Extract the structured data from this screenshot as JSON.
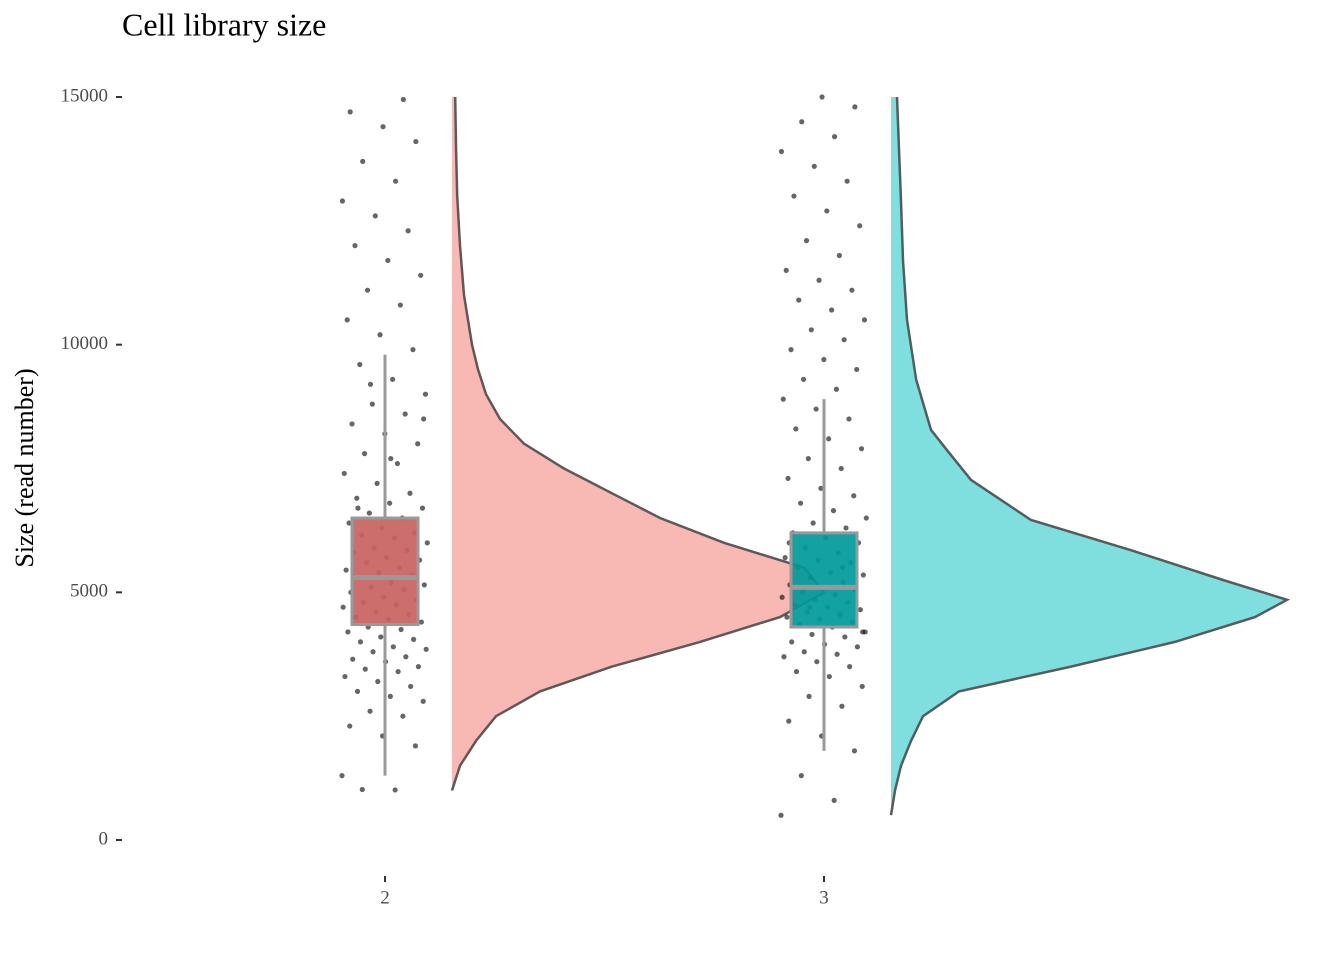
{
  "chart_data": {
    "type": "raincloud",
    "title": "Cell library size",
    "y_label": "Size (read number)",
    "categories": [
      "2",
      "3"
    ],
    "ylim": [
      0,
      15000
    ],
    "yticks": [
      0,
      5000,
      10000,
      15000
    ],
    "groups": [
      {
        "box_color": "#c8625e",
        "density_color": "#f8b8b4",
        "box": {
          "whisker_low": 1300,
          "q1": 4350,
          "median": 5300,
          "q3": 6500,
          "whisker_high": 9800
        },
        "density_y": [
          1000,
          1500,
          2000,
          2500,
          3000,
          3500,
          4000,
          4500,
          5000,
          5500,
          6000,
          6500,
          7000,
          7500,
          8000,
          8500,
          9000,
          9500,
          10000,
          11000,
          12000,
          13000,
          14000,
          15000
        ],
        "density": [
          0,
          0.02,
          0.06,
          0.11,
          0.22,
          0.4,
          0.62,
          0.82,
          0.93,
          0.88,
          0.68,
          0.52,
          0.4,
          0.28,
          0.18,
          0.12,
          0.085,
          0.065,
          0.05,
          0.03,
          0.02,
          0.013,
          0.01,
          0.008
        ],
        "points": [
          1300,
          1010,
          1020,
          1900,
          2100,
          2300,
          2500,
          2600,
          2800,
          2900,
          3000,
          3100,
          3200,
          3300,
          3400,
          3450,
          3500,
          3600,
          3650,
          3700,
          3800,
          3850,
          3900,
          4000,
          4050,
          4100,
          4200,
          4250,
          4300,
          4400,
          4450,
          4500,
          4550,
          4600,
          4700,
          4750,
          4800,
          4850,
          4900,
          5000,
          5050,
          5100,
          5150,
          5200,
          5300,
          5350,
          5400,
          5450,
          5500,
          5600,
          5650,
          5700,
          5800,
          5850,
          5900,
          6000,
          6100,
          6150,
          6200,
          6300,
          6400,
          6500,
          6600,
          6700,
          6800,
          6900,
          7000,
          7200,
          7400,
          7600,
          7800,
          8000,
          8200,
          8400,
          8600,
          8800,
          9000,
          9300,
          9600,
          9900,
          10200,
          10500,
          10800,
          11100,
          11400,
          11700,
          12000,
          12300,
          12600,
          12900,
          13300,
          13700,
          14100,
          14400,
          14700,
          14950,
          9200,
          8500,
          7700,
          6700
        ]
      },
      {
        "box_color": "#00999a",
        "density_color": "#7fdfdf",
        "box": {
          "whisker_low": 1800,
          "q1": 4300,
          "median": 5100,
          "q3": 6200,
          "whisker_high": 8900
        },
        "density_y": [
          500,
          1000,
          1500,
          2000,
          2500,
          3000,
          3500,
          4000,
          4500,
          4850,
          5250,
          5850,
          6460,
          7270,
          7870,
          8280,
          9290,
          10500,
          11700,
          12900,
          15000
        ],
        "density": [
          0,
          0.01,
          0.025,
          0.05,
          0.08,
          0.17,
          0.45,
          0.71,
          0.91,
          0.99,
          0.83,
          0.6,
          0.35,
          0.2,
          0.14,
          0.1,
          0.063,
          0.04,
          0.03,
          0.025,
          0.015
        ],
        "points": [
          500,
          800,
          1300,
          1800,
          2100,
          2400,
          2700,
          2900,
          3100,
          3300,
          3400,
          3500,
          3600,
          3700,
          3750,
          3800,
          3900,
          3950,
          4000,
          4100,
          4150,
          4200,
          4300,
          4350,
          4400,
          4450,
          4500,
          4550,
          4600,
          4650,
          4700,
          4750,
          4800,
          4850,
          4900,
          4950,
          5000,
          5050,
          5100,
          5150,
          5200,
          5300,
          5350,
          5400,
          5500,
          5600,
          5650,
          5700,
          5800,
          5900,
          6000,
          6100,
          6200,
          6300,
          6400,
          6500,
          6650,
          6800,
          6950,
          7100,
          7300,
          7500,
          7700,
          7900,
          8100,
          8300,
          8500,
          8700,
          8900,
          9100,
          9300,
          9500,
          9700,
          9900,
          10100,
          10300,
          10500,
          10700,
          10900,
          11100,
          11300,
          11500,
          11800,
          12100,
          12400,
          12700,
          13000,
          13300,
          13600,
          13900,
          14200,
          14500,
          14800,
          15000,
          6000,
          5500,
          4700,
          4200
        ]
      }
    ]
  }
}
